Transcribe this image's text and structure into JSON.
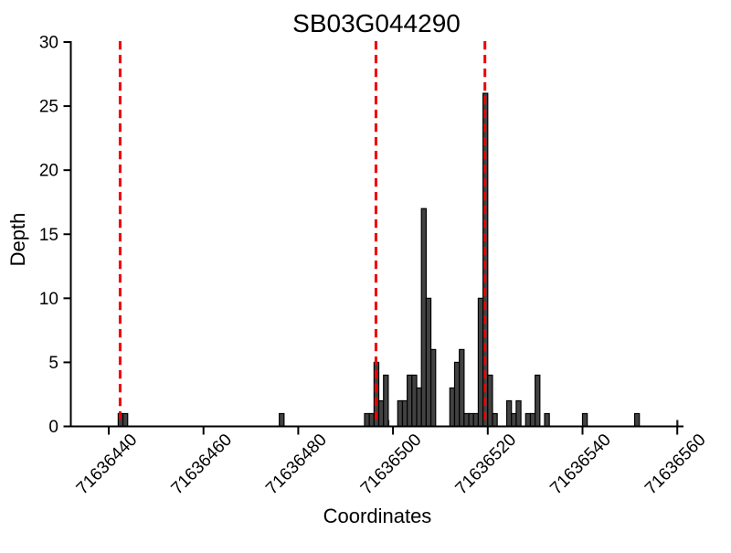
{
  "figure": {
    "background": "#ffffff",
    "text_color": "#000000"
  },
  "chart_data": {
    "type": "bar",
    "title": "SB03G044290",
    "xlabel": "Coordinates",
    "ylabel": "Depth",
    "grid": false,
    "legend": null,
    "ylim": [
      0,
      30
    ],
    "y_ticks": [
      0,
      5,
      10,
      15,
      20,
      25,
      30
    ],
    "x_ticks": [
      71636440,
      71636460,
      71636480,
      71636500,
      71636520,
      71636540,
      71636560
    ],
    "xlim": [
      71636432,
      71636561
    ],
    "bar_fill": "#424242",
    "bar_stroke": "#000000",
    "axis_color": "#000000",
    "marker_line_color": "#f00000",
    "marker_lines": [
      71636442.4,
      71636496.4,
      71636519.4
    ],
    "tiny_marks": [
      71636499,
      71636560
    ],
    "bars": [
      {
        "coordinate": 71636442,
        "depth": 1
      },
      {
        "coordinate": 71636443,
        "depth": 1
      },
      {
        "coordinate": 71636476,
        "depth": 1
      },
      {
        "coordinate": 71636494,
        "depth": 1
      },
      {
        "coordinate": 71636495,
        "depth": 1
      },
      {
        "coordinate": 71636496,
        "depth": 5
      },
      {
        "coordinate": 71636497,
        "depth": 2
      },
      {
        "coordinate": 71636498,
        "depth": 4
      },
      {
        "coordinate": 71636501,
        "depth": 2
      },
      {
        "coordinate": 71636502,
        "depth": 2
      },
      {
        "coordinate": 71636503,
        "depth": 4
      },
      {
        "coordinate": 71636504,
        "depth": 4
      },
      {
        "coordinate": 71636505,
        "depth": 3
      },
      {
        "coordinate": 71636506,
        "depth": 17
      },
      {
        "coordinate": 71636507,
        "depth": 10
      },
      {
        "coordinate": 71636508,
        "depth": 6
      },
      {
        "coordinate": 71636512,
        "depth": 3
      },
      {
        "coordinate": 71636513,
        "depth": 5
      },
      {
        "coordinate": 71636514,
        "depth": 6
      },
      {
        "coordinate": 71636515,
        "depth": 1
      },
      {
        "coordinate": 71636516,
        "depth": 1
      },
      {
        "coordinate": 71636517,
        "depth": 1
      },
      {
        "coordinate": 71636518,
        "depth": 10
      },
      {
        "coordinate": 71636519,
        "depth": 26
      },
      {
        "coordinate": 71636520,
        "depth": 4
      },
      {
        "coordinate": 71636521,
        "depth": 1
      },
      {
        "coordinate": 71636524,
        "depth": 2
      },
      {
        "coordinate": 71636525,
        "depth": 1
      },
      {
        "coordinate": 71636526,
        "depth": 2
      },
      {
        "coordinate": 71636528,
        "depth": 1
      },
      {
        "coordinate": 71636529,
        "depth": 1
      },
      {
        "coordinate": 71636530,
        "depth": 4
      },
      {
        "coordinate": 71636532,
        "depth": 1
      },
      {
        "coordinate": 71636540,
        "depth": 1
      },
      {
        "coordinate": 71636551,
        "depth": 1
      }
    ]
  }
}
